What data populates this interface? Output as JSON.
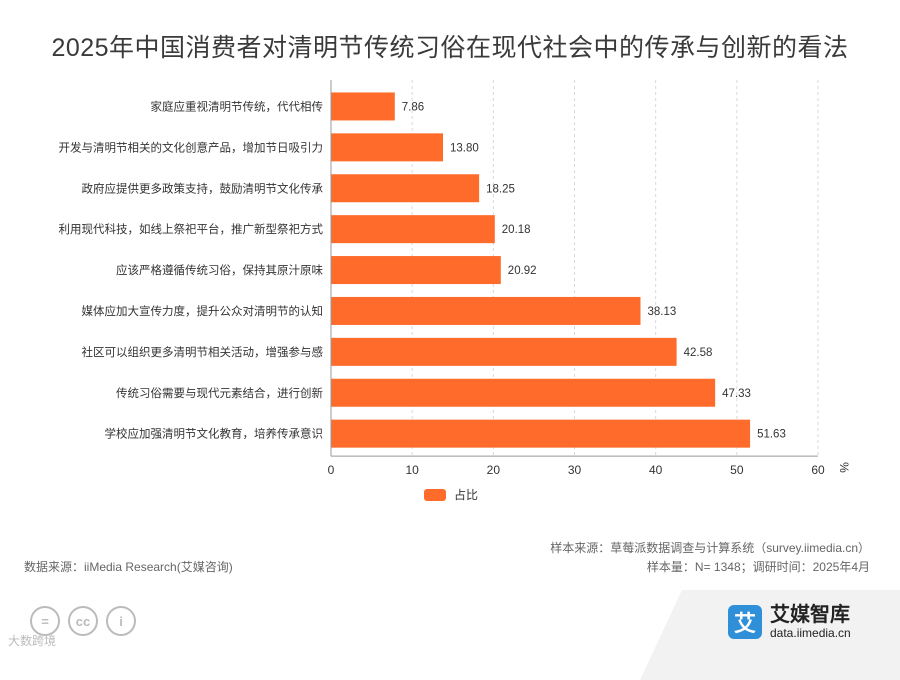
{
  "title": "2025年中国消费者对清明节传统习俗在现代社会中的传承与创新的看法",
  "colors": {
    "bar": "#ff6b2b",
    "grid": "#d9d9d9",
    "text": "#333333"
  },
  "chart_data": {
    "type": "bar",
    "orientation": "horizontal",
    "title": "2025年中国消费者对清明节传统习俗在现代社会中的传承与创新的看法",
    "categories": [
      "家庭应重视清明节传统，代代相传",
      "开发与清明节相关的文化创意产品，增加节日吸引力",
      "政府应提供更多政策支持，鼓励清明节文化传承",
      "利用现代科技，如线上祭祀平台，推广新型祭祀方式",
      "应该严格遵循传统习俗，保持其原汁原味",
      "媒体应加大宣传力度，提升公众对清明节的认知",
      "社区可以组织更多清明节相关活动，增强参与感",
      "传统习俗需要与现代元素结合，进行创新",
      "学校应加强清明节文化教育，培养传承意识"
    ],
    "series": [
      {
        "name": "占比",
        "values": [
          7.86,
          13.8,
          18.25,
          20.18,
          20.92,
          38.13,
          42.58,
          47.33,
          51.63
        ]
      }
    ],
    "value_labels": [
      "7.86",
      "13.80",
      "18.25",
      "20.18",
      "20.92",
      "38.13",
      "42.58",
      "47.33",
      "51.63"
    ],
    "xlim": [
      0,
      60
    ],
    "xticks": [
      0,
      10,
      20,
      30,
      40,
      50,
      60
    ],
    "unit": "%",
    "grid": "vertical dashed",
    "legend": "bottom-center"
  },
  "legend": {
    "label": "占比"
  },
  "footer": {
    "source_left": "数据来源：iiMedia Research(艾媒咨询)",
    "sample_source": "样本来源：草莓派数据调查与计算系统（survey.iimedia.cn）",
    "sample_info": "样本量：N= 1348；调研时间：2025年4月"
  },
  "license_icons": [
    "=",
    "cc",
    "i"
  ],
  "watermark": "大数跨境",
  "brand": {
    "logo": "艾",
    "name": "艾媒智库",
    "url": "data.iimedia.cn"
  }
}
